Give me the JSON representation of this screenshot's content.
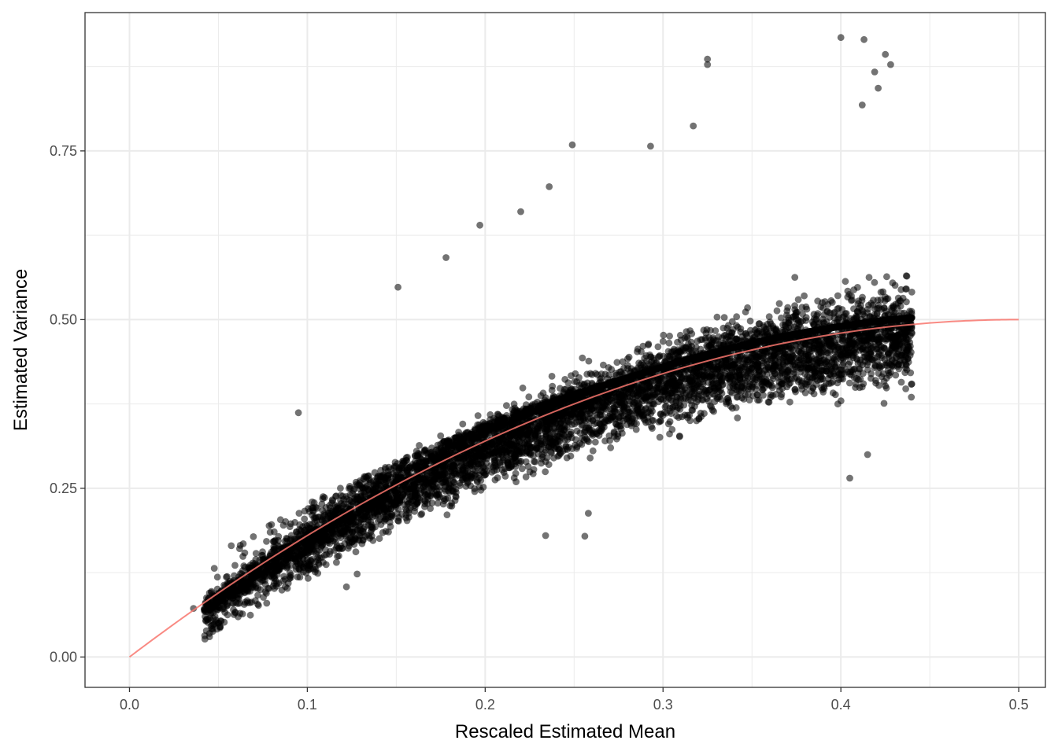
{
  "chart_data": {
    "type": "scatter",
    "title": "",
    "xlabel": "Rescaled Estimated Mean",
    "ylabel": "Estimated Variance",
    "xlim": [
      -0.025,
      0.515
    ],
    "ylim": [
      -0.045,
      0.955
    ],
    "x_ticks": [
      "0.0",
      "0.1",
      "0.2",
      "0.3",
      "0.4",
      "0.5"
    ],
    "y_ticks": [
      "0.00",
      "0.25",
      "0.50",
      "0.75"
    ],
    "grid": true,
    "legend": "none",
    "colors": {
      "points": "#000000",
      "curve": "#f8766d",
      "grid": "#ebebeb",
      "panel_border": "#333333"
    },
    "series": [
      {
        "kind": "points",
        "x_range": [
          0.035,
          0.447
        ],
        "main_band": "dense cloud following variance ≈ 2·m·(1−m), spread about ±0.05 around the curve, cut off at x ≈ 0.44",
        "upper_cloud": "sparser points above the band rising to about 0.80 at x ≈ 0.42",
        "outliers": [
          [
            0.036,
            0.072
          ],
          [
            0.045,
            0.03
          ],
          [
            0.045,
            0.035
          ],
          [
            0.068,
            0.062
          ],
          [
            0.095,
            0.362
          ],
          [
            0.122,
            0.104
          ],
          [
            0.128,
            0.123
          ],
          [
            0.151,
            0.548
          ],
          [
            0.178,
            0.592
          ],
          [
            0.197,
            0.64
          ],
          [
            0.22,
            0.66
          ],
          [
            0.234,
            0.18
          ],
          [
            0.236,
            0.697
          ],
          [
            0.249,
            0.759
          ],
          [
            0.256,
            0.179
          ],
          [
            0.258,
            0.213
          ],
          [
            0.293,
            0.757
          ],
          [
            0.317,
            0.787
          ],
          [
            0.325,
            0.886
          ],
          [
            0.325,
            0.878
          ],
          [
            0.4,
            0.918
          ],
          [
            0.405,
            0.265
          ],
          [
            0.412,
            0.818
          ],
          [
            0.415,
            0.3
          ],
          [
            0.413,
            0.915
          ],
          [
            0.419,
            0.867
          ],
          [
            0.421,
            0.843
          ],
          [
            0.425,
            0.893
          ],
          [
            0.428,
            0.878
          ]
        ]
      },
      {
        "kind": "curve",
        "formula": "2*x*(1-x)",
        "x_range": [
          0.0,
          0.5
        ]
      }
    ]
  }
}
